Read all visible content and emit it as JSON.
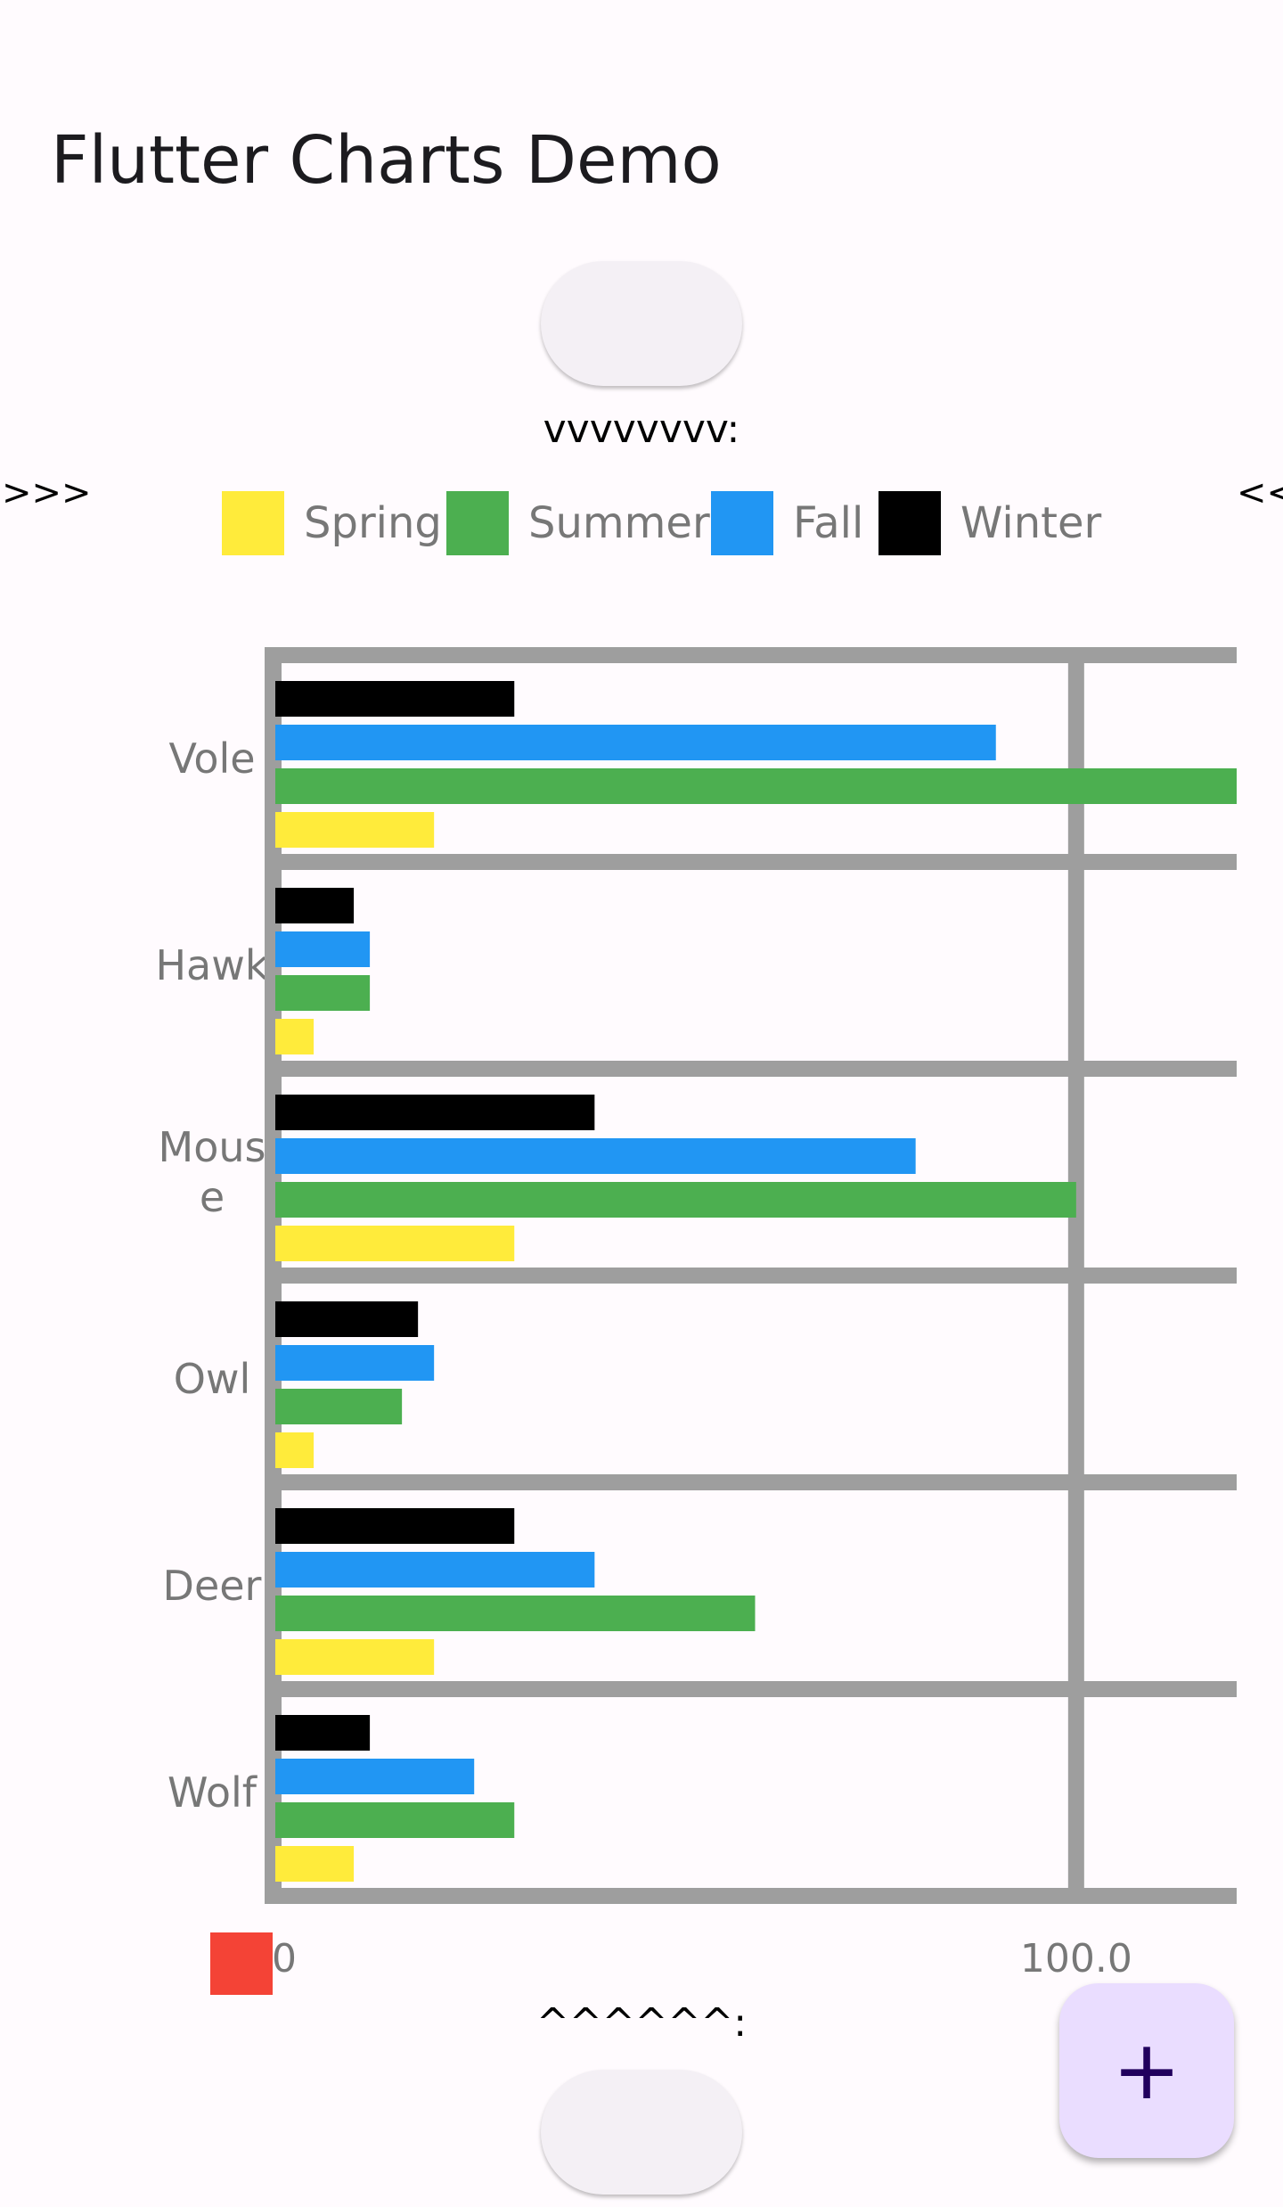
{
  "app": {
    "title": "Flutter Charts Demo"
  },
  "labels": {
    "top": "vvvvvvvv:",
    "bottom": "^^^^^^:",
    "edge_left": ">>>",
    "edge_right": "<<"
  },
  "fab": {
    "icon": "plus-icon",
    "glyph": "+"
  },
  "colors": {
    "Spring": "#ffeb3b",
    "Summer": "#4caf50",
    "Fall": "#2196f3",
    "Winter": "#000000",
    "grid": "#9e9e9e",
    "axis_label": "#777777",
    "marker": "#f44336"
  },
  "chart_data": {
    "type": "bar",
    "orientation": "horizontal",
    "categories": [
      "Vole",
      "Hawk",
      "Mouse",
      "Owl",
      "Deer",
      "Wolf"
    ],
    "series": [
      {
        "name": "Spring",
        "values": [
          20,
          5,
          30,
          5,
          20,
          10
        ]
      },
      {
        "name": "Summer",
        "values": [
          120,
          12,
          100,
          16,
          60,
          30
        ]
      },
      {
        "name": "Fall",
        "values": [
          90,
          12,
          80,
          20,
          40,
          25
        ]
      },
      {
        "name": "Winter",
        "values": [
          30,
          10,
          40,
          18,
          30,
          12
        ]
      }
    ],
    "xlim": [
      0,
      120
    ],
    "x_ticks": [
      0,
      100
    ],
    "x_tick_labels": [
      "0",
      "100.0"
    ],
    "grid": true,
    "legend": "top"
  }
}
